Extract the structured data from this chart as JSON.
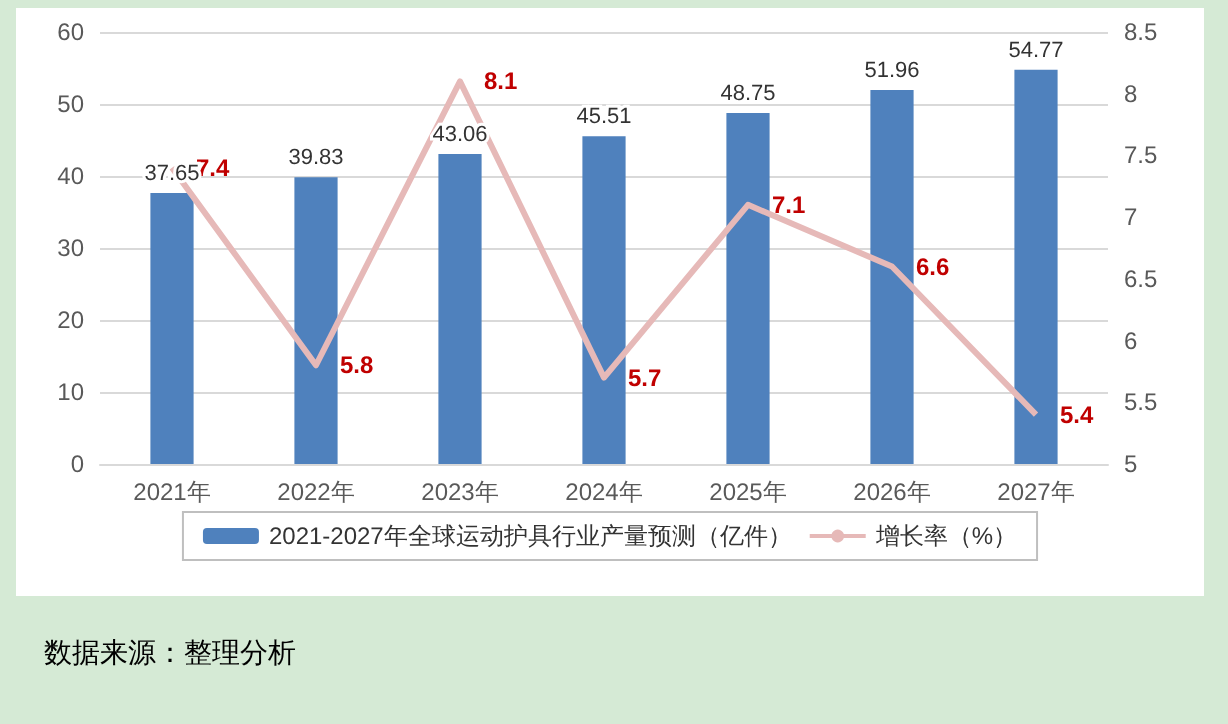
{
  "chart_data": {
    "type": "bar",
    "categories": [
      "2021年",
      "2022年",
      "2023年",
      "2024年",
      "2025年",
      "2026年",
      "2027年"
    ],
    "series": [
      {
        "name": "2021-2027年全球运动护具行业产量预测（亿件）",
        "color": "#4f81bd",
        "values": [
          37.65,
          39.83,
          43.06,
          45.51,
          48.75,
          51.96,
          54.77
        ]
      },
      {
        "name": "增长率（%）",
        "type": "line",
        "axis": "y2",
        "color": "#e6b9b8",
        "values": [
          7.4,
          5.8,
          8.1,
          5.7,
          7.1,
          6.6,
          5.4
        ]
      }
    ],
    "ylim": [
      0,
      60
    ],
    "yticks": [
      0,
      10,
      20,
      30,
      40,
      50,
      60
    ],
    "y2lim": [
      5,
      8.5
    ],
    "y2ticks": [
      5,
      5.5,
      6,
      6.5,
      7,
      7.5,
      8,
      8.5
    ],
    "grid": "y",
    "legend": "bottom",
    "data_labels": true,
    "marker": "none",
    "annotations": [
      "数据来源：整理分析"
    ]
  }
}
